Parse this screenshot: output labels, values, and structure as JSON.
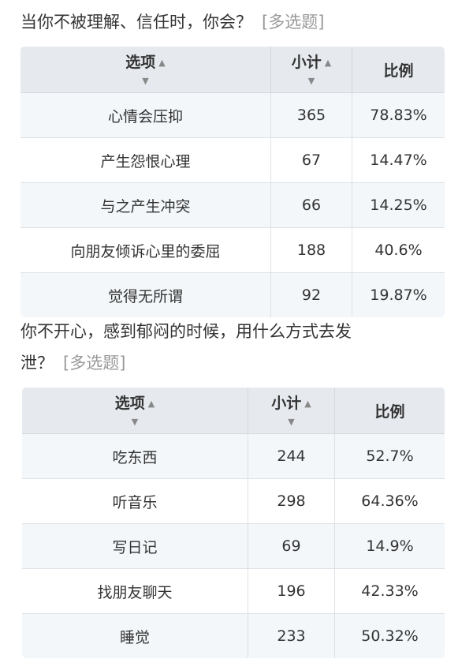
{
  "q1": {
    "title": "当你不被理解、信任时，你会？",
    "tag": "[多选题]",
    "headers": [
      "选项",
      "小计",
      "比例"
    ],
    "rows": [
      [
        "心情会压抑",
        "365",
        "78.83%"
      ],
      [
        "产生怨恨心理",
        "67",
        "14.47%"
      ],
      [
        "与之产生冲突",
        "66",
        "14.25%"
      ],
      [
        "向朋友倾诉心里的委屈",
        "188",
        "40.6%"
      ],
      [
        "觉得无所谓",
        "92",
        "19.87%"
      ]
    ]
  },
  "q2": {
    "title_line1": "你不开心，感到郁闷的时候，用什么方式去发",
    "title_line2": "泄？",
    "tag": "[多选题]",
    "headers": [
      "选项",
      "小计",
      "比例"
    ],
    "rows": [
      [
        "吃东西",
        "244",
        "52.7%"
      ],
      [
        "听音乐",
        "298",
        "64.36%"
      ],
      [
        "写日记",
        "69",
        "14.9%"
      ],
      [
        "找朋友聊天",
        "196",
        "42.33%"
      ],
      [
        "睡觉",
        "233",
        "50.32%"
      ]
    ]
  },
  "icons": {
    "sort": "sort-arrows-icon"
  }
}
